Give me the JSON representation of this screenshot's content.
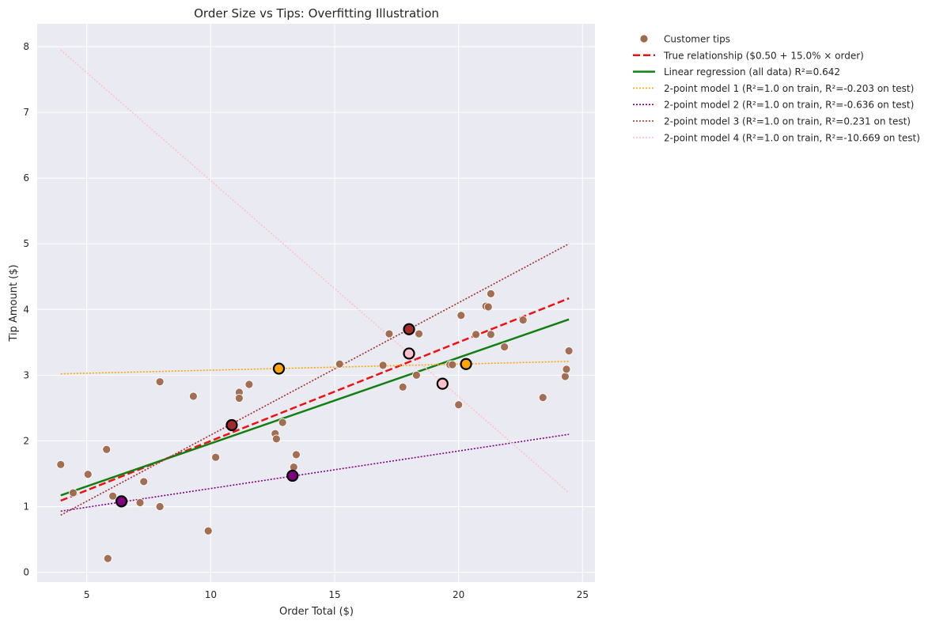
{
  "chart_data": {
    "type": "scatter",
    "title": "Order Size vs Tips: Overfitting Illustration",
    "xlabel": "Order Total ($)",
    "ylabel": "Tip Amount ($)",
    "xlim": [
      3.0,
      25.5
    ],
    "ylim": [
      -0.15,
      8.35
    ],
    "xticks": [
      5,
      10,
      15,
      20,
      25
    ],
    "yticks": [
      0,
      1,
      2,
      3,
      4,
      5,
      6,
      7,
      8
    ],
    "grid": true,
    "legend_position": "outside top-right",
    "background_color": "#eaeaf2",
    "scatter": {
      "name": "Customer tips",
      "color": "#a0694a",
      "points": [
        [
          3.95,
          1.64
        ],
        [
          4.45,
          1.21
        ],
        [
          5.05,
          1.49
        ],
        [
          5.8,
          1.87
        ],
        [
          5.85,
          0.21
        ],
        [
          6.05,
          1.16
        ],
        [
          7.15,
          1.06
        ],
        [
          7.3,
          1.38
        ],
        [
          7.95,
          2.9
        ],
        [
          7.95,
          1.0
        ],
        [
          9.3,
          2.68
        ],
        [
          9.9,
          0.63
        ],
        [
          10.2,
          1.75
        ],
        [
          11.15,
          2.74
        ],
        [
          11.15,
          2.65
        ],
        [
          11.55,
          2.86
        ],
        [
          12.6,
          2.11
        ],
        [
          12.65,
          2.03
        ],
        [
          12.9,
          2.28
        ],
        [
          13.35,
          1.6
        ],
        [
          13.45,
          1.79
        ],
        [
          15.2,
          3.17
        ],
        [
          16.95,
          3.15
        ],
        [
          17.2,
          3.63
        ],
        [
          17.75,
          2.82
        ],
        [
          18.3,
          3.0
        ],
        [
          18.4,
          3.63
        ],
        [
          19.65,
          3.16
        ],
        [
          19.75,
          3.16
        ],
        [
          20.0,
          2.55
        ],
        [
          20.1,
          3.91
        ],
        [
          20.7,
          3.62
        ],
        [
          21.1,
          4.05
        ],
        [
          21.2,
          4.04
        ],
        [
          21.3,
          4.24
        ],
        [
          21.3,
          3.62
        ],
        [
          21.85,
          3.43
        ],
        [
          22.6,
          3.84
        ],
        [
          23.4,
          2.66
        ],
        [
          24.3,
          2.98
        ],
        [
          24.35,
          3.09
        ],
        [
          24.45,
          3.37
        ]
      ]
    },
    "series": [
      {
        "name": "True relationship ($0.50 + 15.0% × order)",
        "color": "#ee1111",
        "style": "dashed",
        "width": 2.5,
        "x": [
          3.95,
          24.45
        ],
        "y": [
          1.09,
          4.17
        ]
      },
      {
        "name": "Linear regression (all data) R²=0.642",
        "color": "#108010",
        "style": "solid",
        "width": 2.5,
        "x": [
          3.95,
          24.45
        ],
        "y": [
          1.17,
          3.85
        ]
      },
      {
        "name": "2-point model 1 (R²=1.0 on train, R²=-0.203 on test)",
        "color": "#ffa500",
        "style": "dotted",
        "width": 1.6,
        "x": [
          3.95,
          24.45
        ],
        "y": [
          3.02,
          3.21
        ],
        "train_points": [
          [
            12.75,
            3.1
          ],
          [
            20.3,
            3.17
          ]
        ]
      },
      {
        "name": "2-point model 2 (R²=1.0 on train, R²=-0.636 on test)",
        "color": "#800080",
        "style": "dotted",
        "width": 1.6,
        "x": [
          3.95,
          24.45
        ],
        "y": [
          0.93,
          2.1
        ],
        "train_points": [
          [
            6.4,
            1.08
          ],
          [
            13.3,
            1.47
          ]
        ]
      },
      {
        "name": "2-point model 3 (R²=1.0 on train, R²=0.231 on test)",
        "color": "#a52a2a",
        "style": "dotted",
        "width": 1.6,
        "x": [
          3.95,
          24.45
        ],
        "y": [
          0.87,
          5.0
        ],
        "train_points": [
          [
            10.85,
            2.24
          ],
          [
            18.0,
            3.7
          ]
        ]
      },
      {
        "name": "2-point model 4 (R²=1.0 on train, R²=-10.669 on test)",
        "color": "#ffc0cb",
        "style": "dotted",
        "width": 1.6,
        "x": [
          3.95,
          24.45
        ],
        "y": [
          7.95,
          1.21
        ],
        "train_points": [
          [
            18.0,
            3.33
          ],
          [
            19.35,
            2.87
          ]
        ]
      }
    ]
  }
}
